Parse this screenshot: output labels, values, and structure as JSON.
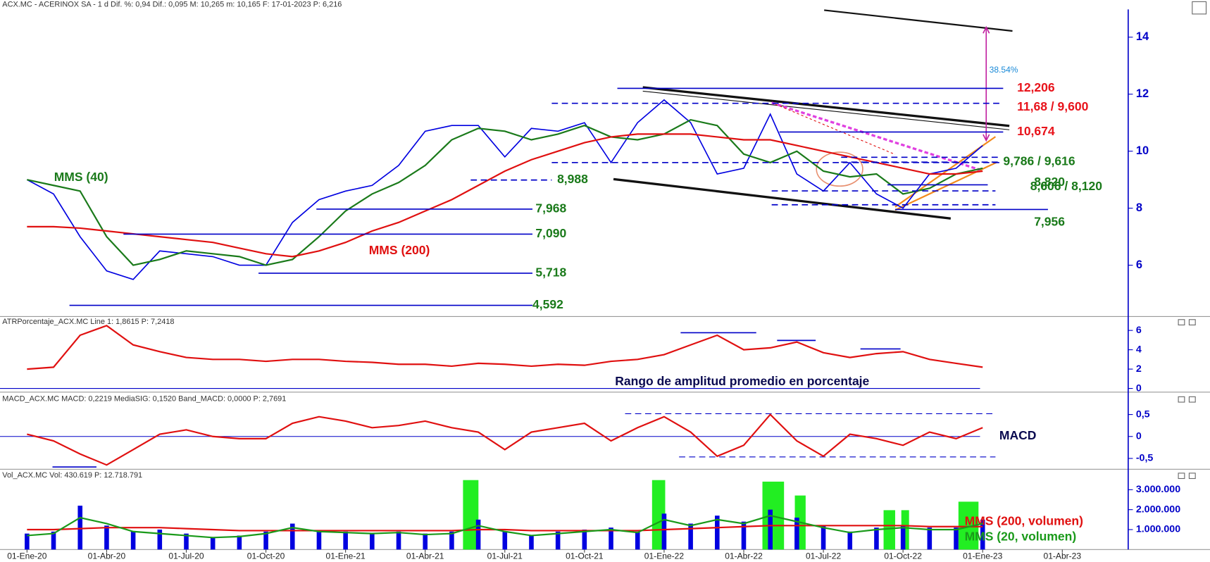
{
  "chart_data": [
    {
      "type": "line",
      "header": "ACX.MC - ACERINOX SA - 1 d  Dif. %: 0,94  Dif.: 0,095  M: 10,265  m: 10,165  F: 17-01-2023  P: 6,216",
      "ylim": [
        4.2,
        15.3
      ],
      "yticks": [
        6,
        8,
        10,
        12,
        14
      ],
      "series": [
        {
          "color": "#0000e0",
          "values": [
            9.0,
            8.5,
            7.0,
            5.8,
            5.5,
            6.5,
            6.4,
            6.3,
            6.0,
            6.0,
            7.5,
            8.3,
            8.6,
            8.8,
            9.5,
            10.7,
            10.9,
            10.9,
            9.8,
            10.8,
            10.7,
            11.0,
            9.6,
            11.0,
            11.8,
            11.0,
            9.2,
            9.4,
            11.3,
            9.2,
            8.6,
            9.6,
            8.5,
            8.0,
            9.2,
            9.4,
            10.2,
            null,
            null,
            null
          ]
        },
        {
          "name": "MMS (40)",
          "color": "#1a7a1a",
          "values": [
            9.0,
            8.8,
            8.6,
            7.0,
            6.0,
            6.2,
            6.5,
            6.4,
            6.3,
            6.0,
            6.2,
            7.0,
            7.9,
            8.5,
            8.9,
            9.5,
            10.4,
            10.8,
            10.7,
            10.4,
            10.6,
            10.9,
            10.5,
            10.4,
            10.6,
            11.1,
            10.9,
            9.9,
            9.6,
            10.0,
            9.3,
            9.1,
            9.2,
            8.5,
            8.7,
            9.2,
            9.4,
            null,
            null,
            null
          ]
        },
        {
          "name": "MMS (200)",
          "color": "#e01010",
          "values": [
            7.35,
            7.35,
            7.3,
            7.2,
            7.1,
            7.0,
            6.9,
            6.8,
            6.6,
            6.4,
            6.3,
            6.5,
            6.8,
            7.2,
            7.5,
            7.9,
            8.3,
            8.8,
            9.3,
            9.7,
            10.0,
            10.3,
            10.5,
            10.6,
            10.6,
            10.6,
            10.5,
            10.4,
            10.4,
            10.2,
            10.0,
            9.8,
            9.6,
            9.4,
            9.2,
            9.2,
            9.3,
            null,
            null,
            null
          ]
        }
      ],
      "levels": [
        {
          "value": 12.206,
          "label": "12,206",
          "color": "#e8131b"
        },
        {
          "values": [
            11.68,
            9.6
          ],
          "label": "11,68 / 9,600",
          "color": "#e8131b",
          "style": "dashed"
        },
        {
          "value": 10.674,
          "label": "10,674",
          "color": "#e8131b"
        },
        {
          "values": [
            9.786,
            9.616
          ],
          "label": "9,786 / 9,616",
          "color": "#1a7a1a",
          "style": "dashed"
        },
        {
          "value": 8.82,
          "label": "8,820",
          "color": "#1a7a1a"
        },
        {
          "values": [
            8.606,
            8.12
          ],
          "label": "8,606 / 8,120",
          "color": "#1a7a1a",
          "style": "dashed"
        },
        {
          "value": 7.956,
          "label": "7,956",
          "color": "#1a7a1a"
        },
        {
          "value": 8.988,
          "label": "8,988",
          "color": "#1a7a1a",
          "style": "dashed"
        },
        {
          "value": 7.968,
          "label": "7,968",
          "color": "#1a7a1a"
        },
        {
          "value": 7.09,
          "label": "7,090",
          "color": "#1a7a1a"
        },
        {
          "value": 5.718,
          "label": "5,718",
          "color": "#1a7a1a"
        },
        {
          "value": 4.592,
          "label": "4,592",
          "color": "#1a7a1a"
        }
      ],
      "annotation": "38.54%"
    },
    {
      "type": "line",
      "header": "ATRPorcentaje_ACX.MC  Line 1: 1,8615  P: 7,2418",
      "ylim": [
        -0.3,
        7.2
      ],
      "yticks": [
        0,
        2,
        4,
        6
      ],
      "series": [
        {
          "color": "#e01010",
          "values": [
            2.0,
            2.2,
            5.5,
            6.5,
            4.5,
            3.8,
            3.2,
            3.0,
            3.0,
            2.8,
            3.0,
            3.0,
            2.8,
            2.7,
            2.5,
            2.5,
            2.3,
            2.6,
            2.5,
            2.3,
            2.5,
            2.4,
            2.8,
            3.0,
            3.5,
            4.5,
            5.5,
            4.0,
            4.2,
            4.8,
            3.7,
            3.2,
            3.6,
            3.8,
            3.0,
            2.6,
            2.2,
            null,
            null,
            null
          ]
        }
      ],
      "annotation": "Rango de amplitud promedio en porcentaje"
    },
    {
      "type": "line",
      "header": "MACD_ACX.MC  MACD: 0,2219  MediaSIG: 0,1520  Band_MACD: 0,0000  P: 2,7691",
      "ylim": [
        -0.73,
        0.94
      ],
      "yticks": [
        {
          "value": -0.5,
          "label": "-0,5"
        },
        0,
        {
          "value": 0.5,
          "label": "0,5"
        }
      ],
      "series": [
        {
          "color": "#e01010",
          "values": [
            0.05,
            -0.1,
            -0.4,
            -0.65,
            -0.3,
            0.05,
            0.15,
            0.0,
            -0.05,
            -0.05,
            0.3,
            0.45,
            0.35,
            0.2,
            0.25,
            0.35,
            0.2,
            0.1,
            -0.3,
            0.1,
            0.2,
            0.3,
            -0.1,
            0.2,
            0.45,
            0.1,
            -0.45,
            -0.2,
            0.5,
            -0.1,
            -0.45,
            0.05,
            -0.05,
            -0.2,
            0.1,
            -0.05,
            0.2,
            null,
            null,
            null
          ]
        }
      ],
      "annotation": "MACD"
    },
    {
      "type": "bar",
      "header": "Vol_ACX.MC  Vol: 430.619  P: 12.718.791",
      "ylim": [
        0,
        3870000
      ],
      "yticks": [
        {
          "value": 1000000,
          "label": "1.000.000"
        },
        {
          "value": 2000000,
          "label": "2.000.000"
        },
        {
          "value": 3000000,
          "label": "3.000.000"
        }
      ],
      "color": "#0000e0",
      "categories": [
        "01-Ene-20",
        null,
        null,
        "01-Abr-20",
        null,
        null,
        "01-Jul-20",
        null,
        null,
        "01-Oct-20",
        null,
        null,
        "01-Ene-21",
        null,
        null,
        "01-Abr-21",
        null,
        null,
        "01-Jul-21",
        null,
        null,
        "01-Oct-21",
        null,
        null,
        "01-Ene-22",
        null,
        null,
        "01-Abr-22",
        null,
        null,
        "01-Jul-22",
        null,
        null,
        "01-Oct-22",
        null,
        null,
        "01-Ene-23",
        null,
        null,
        "01-Abr-23"
      ],
      "values": [
        800000,
        900000,
        2200000,
        1200000,
        900000,
        1000000,
        800000,
        600000,
        700000,
        900000,
        1300000,
        900000,
        900000,
        800000,
        900000,
        800000,
        900000,
        1500000,
        900000,
        700000,
        900000,
        1000000,
        1100000,
        900000,
        1800000,
        1300000,
        1700000,
        1400000,
        2000000,
        1600000,
        1200000,
        900000,
        1100000,
        1200000,
        1100000,
        1100000,
        1500000,
        null,
        null,
        null
      ],
      "series": [
        {
          "name": "MMS (200, volumen)",
          "color": "#e01010",
          "values": [
            1000000,
            1000000,
            1050000,
            1100000,
            1100000,
            1100000,
            1050000,
            1000000,
            950000,
            950000,
            950000,
            950000,
            950000,
            950000,
            950000,
            950000,
            950000,
            1000000,
            1000000,
            950000,
            950000,
            950000,
            950000,
            950000,
            1000000,
            1050000,
            1100000,
            1150000,
            1200000,
            1200000,
            1200000,
            1200000,
            1200000,
            1200000,
            1150000,
            1150000,
            1150000,
            null,
            null,
            null
          ]
        },
        {
          "name": "MMS (20, volumen)",
          "color": "#1a9a1a",
          "values": [
            700000,
            800000,
            1600000,
            1300000,
            900000,
            800000,
            700000,
            600000,
            650000,
            800000,
            1100000,
            900000,
            850000,
            800000,
            850000,
            750000,
            800000,
            1200000,
            900000,
            700000,
            800000,
            900000,
            1000000,
            850000,
            1500000,
            1200000,
            1500000,
            1300000,
            1700000,
            1400000,
            1100000,
            850000,
            1000000,
            1100000,
            1000000,
            1000000,
            1300000,
            null,
            null,
            null
          ]
        }
      ]
    }
  ]
}
